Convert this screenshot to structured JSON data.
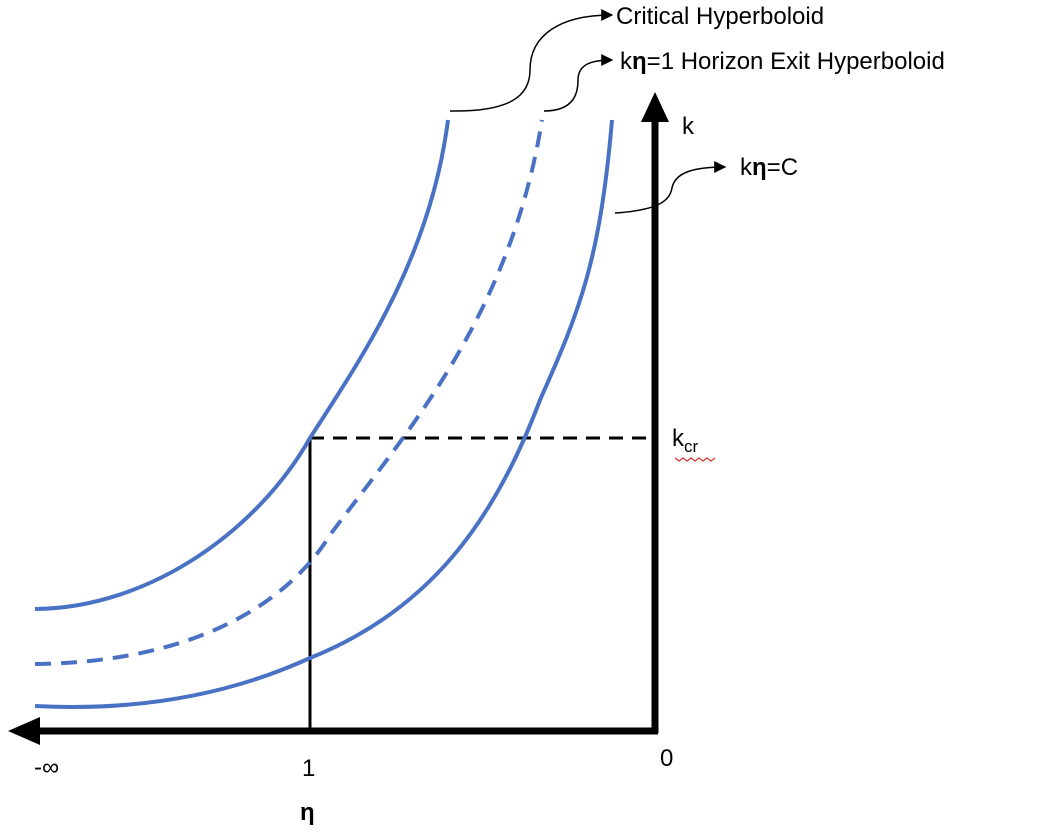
{
  "labels": {
    "critical": "Critical Hyperboloid",
    "horizon_k": "k",
    "horizon_eta": "η",
    "horizon_rest": "=1 Horizon Exit Hyperboloid",
    "c_k": "k",
    "c_eta": "η",
    "c_rest": "=C",
    "k_axis": "k",
    "kcr_k": "k",
    "kcr_sub": "cr",
    "zero": "0",
    "neg_inf": "-∞",
    "one": "1",
    "eta_axis": "η"
  },
  "colors": {
    "curve": "#4a72c4",
    "axis": "#000000"
  }
}
